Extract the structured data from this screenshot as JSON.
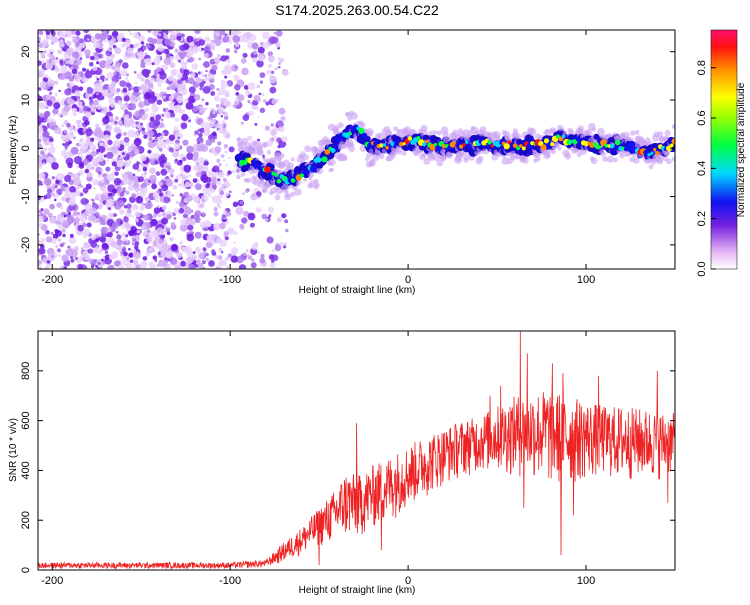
{
  "title": "S174.2025.263.00.54.C22",
  "chart_data": [
    {
      "type": "heatmap",
      "name": "spectrogram",
      "xlabel": "Height of straight line (km)",
      "ylabel": "Frequency (Hz)",
      "xlim": [
        -208,
        150
      ],
      "ylim": [
        -25,
        24.5
      ],
      "x_ticks": [
        -200,
        -100,
        0,
        100
      ],
      "y_ticks": [
        -20,
        -10,
        0,
        10,
        20
      ],
      "colorbar": {
        "label": "Normalized spectral amplitude",
        "range": [
          0,
          0.95
        ],
        "ticks": [
          0.0,
          0.2,
          0.4,
          0.6,
          0.8
        ]
      },
      "noise_region_x": [
        -208,
        -78
      ],
      "signal_trace": [
        {
          "x": -95,
          "f": -2.5
        },
        {
          "x": -85,
          "f": -3.5
        },
        {
          "x": -75,
          "f": -6.0
        },
        {
          "x": -65,
          "f": -6.5
        },
        {
          "x": -55,
          "f": -4.0
        },
        {
          "x": -48,
          "f": -2.0
        },
        {
          "x": -40,
          "f": 1.0
        },
        {
          "x": -33,
          "f": 3.5
        },
        {
          "x": -28,
          "f": 4.0
        },
        {
          "x": -22,
          "f": 0.5
        },
        {
          "x": -15,
          "f": 0.5
        },
        {
          "x": -5,
          "f": 1.5
        },
        {
          "x": 5,
          "f": 1.5
        },
        {
          "x": 15,
          "f": 0.5
        },
        {
          "x": 30,
          "f": 0.5
        },
        {
          "x": 45,
          "f": 1.0
        },
        {
          "x": 60,
          "f": 0.5
        },
        {
          "x": 75,
          "f": 0.5
        },
        {
          "x": 85,
          "f": 2.0
        },
        {
          "x": 95,
          "f": 1.5
        },
        {
          "x": 110,
          "f": 0.5
        },
        {
          "x": 125,
          "f": 0.5
        },
        {
          "x": 135,
          "f": -1.0
        },
        {
          "x": 150,
          "f": 1.0
        }
      ]
    },
    {
      "type": "line",
      "name": "snr",
      "xlabel": "Height of straight line (km)",
      "ylabel": "SNR (10 * v/v)",
      "xlim": [
        -208,
        150
      ],
      "ylim": [
        0,
        960
      ],
      "x_ticks": [
        -200,
        -100,
        0,
        100
      ],
      "y_ticks": [
        0,
        200,
        400,
        600,
        800
      ],
      "color": "#ee2222",
      "envelope": [
        {
          "x": -208,
          "lo": 5,
          "hi": 30
        },
        {
          "x": -150,
          "lo": 5,
          "hi": 30
        },
        {
          "x": -100,
          "lo": 5,
          "hi": 30
        },
        {
          "x": -80,
          "lo": 10,
          "hi": 40
        },
        {
          "x": -70,
          "lo": 30,
          "hi": 110
        },
        {
          "x": -60,
          "lo": 60,
          "hi": 170
        },
        {
          "x": -50,
          "lo": 90,
          "hi": 250
        },
        {
          "x": -40,
          "lo": 110,
          "hi": 330
        },
        {
          "x": -35,
          "lo": 120,
          "hi": 400
        },
        {
          "x": -28,
          "lo": 120,
          "hi": 380
        },
        {
          "x": -20,
          "lo": 160,
          "hi": 420
        },
        {
          "x": -10,
          "lo": 190,
          "hi": 460
        },
        {
          "x": 0,
          "lo": 250,
          "hi": 500
        },
        {
          "x": 10,
          "lo": 290,
          "hi": 540
        },
        {
          "x": 20,
          "lo": 340,
          "hi": 570
        },
        {
          "x": 30,
          "lo": 370,
          "hi": 600
        },
        {
          "x": 40,
          "lo": 390,
          "hi": 620
        },
        {
          "x": 50,
          "lo": 390,
          "hi": 660
        },
        {
          "x": 60,
          "lo": 370,
          "hi": 700
        },
        {
          "x": 70,
          "lo": 360,
          "hi": 720
        },
        {
          "x": 80,
          "lo": 330,
          "hi": 730
        },
        {
          "x": 90,
          "lo": 330,
          "hi": 700
        },
        {
          "x": 100,
          "lo": 360,
          "hi": 680
        },
        {
          "x": 110,
          "lo": 370,
          "hi": 660
        },
        {
          "x": 120,
          "lo": 350,
          "hi": 660
        },
        {
          "x": 130,
          "lo": 360,
          "hi": 650
        },
        {
          "x": 140,
          "lo": 360,
          "hi": 640
        },
        {
          "x": 150,
          "lo": 370,
          "hi": 630
        }
      ],
      "peaks": [
        {
          "x": 63,
          "y": 958
        },
        {
          "x": 67,
          "y": 870
        },
        {
          "x": 81,
          "y": 830
        },
        {
          "x": 87,
          "y": 790
        },
        {
          "x": 107,
          "y": 780
        },
        {
          "x": 140,
          "y": 800
        },
        {
          "x": -29,
          "y": 590
        },
        {
          "x": 52,
          "y": 740
        },
        {
          "x": 46,
          "y": 700
        }
      ],
      "dips": [
        {
          "x": 86,
          "y": 60
        },
        {
          "x": 65,
          "y": 250
        },
        {
          "x": 93,
          "y": 220
        },
        {
          "x": -15,
          "y": 80
        },
        {
          "x": -50,
          "y": 20
        },
        {
          "x": 146,
          "y": 270
        }
      ]
    }
  ]
}
